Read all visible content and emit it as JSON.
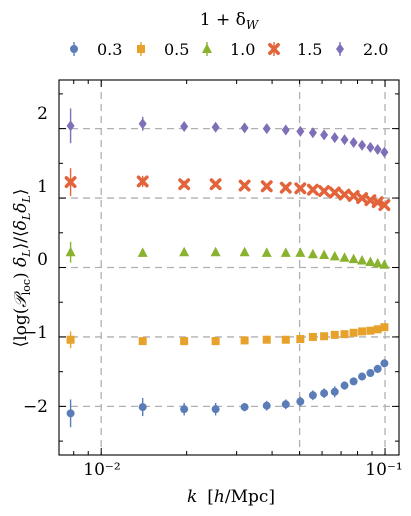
{
  "chart_data": {
    "type": "scatter",
    "x_scale": "log",
    "xlim": [
      0.0071,
      0.112
    ],
    "ylim": [
      -2.7,
      2.7
    ],
    "xlabel": "k  [h/Mpc]",
    "ylabel": "⟨log(𝒫_loc) δ_L⟩/⟨δ_L δ_L⟩",
    "x_tick_labels": [
      "10⁻²",
      "10⁻¹"
    ],
    "y_ticks": [
      -2,
      -1,
      0,
      1,
      2
    ],
    "y_tick_labels": [
      "−2",
      "−1",
      "0",
      "1",
      "2"
    ],
    "grid": "dashed lines at x = 0.01, 0.05, 0.1 and y = −2, −1, 0, 1, 2",
    "legend": {
      "placement": "top, horizontal",
      "title": "1 + δ_W",
      "labels": [
        "0.3",
        "0.5",
        "1.0",
        "1.5",
        "2.0"
      ]
    },
    "x": [
      0.0078,
      0.014,
      0.0196,
      0.0253,
      0.032,
      0.0383,
      0.0447,
      0.0503,
      0.0557,
      0.061,
      0.0665,
      0.072,
      0.0775,
      0.083,
      0.0888,
      0.0942,
      0.0995
    ],
    "series": [
      {
        "label": "0.3",
        "color": "#5a7db8",
        "marker": "circle",
        "values": [
          -2.1,
          -2.01,
          -2.04,
          -2.04,
          -2.01,
          -1.99,
          -1.97,
          -1.93,
          -1.84,
          -1.81,
          -1.79,
          -1.7,
          -1.64,
          -1.57,
          -1.52,
          -1.46,
          -1.38
        ],
        "errors": [
          0.2,
          0.13,
          0.09,
          0.09,
          0.06,
          0.07,
          0.07,
          0.07,
          0.07,
          0.07,
          0.08,
          0.06,
          0.05,
          0.05,
          0.05,
          0.06,
          0.06
        ]
      },
      {
        "label": "0.5",
        "color": "#e6a22b",
        "marker": "square",
        "values": [
          -1.04,
          -1.06,
          -1.06,
          -1.06,
          -1.05,
          -1.04,
          -1.04,
          -1.03,
          -1.0,
          -0.99,
          -0.97,
          -0.96,
          -0.94,
          -0.92,
          -0.91,
          -0.89,
          -0.86
        ],
        "errors": [
          0.12,
          0.05,
          0.04,
          0.03,
          0.03,
          0.03,
          0.03,
          0.03,
          0.03,
          0.03,
          0.03,
          0.03,
          0.03,
          0.03,
          0.03,
          0.03,
          0.03
        ]
      },
      {
        "label": "1.0",
        "color": "#89b22e",
        "marker": "triangle",
        "values": [
          0.22,
          0.21,
          0.22,
          0.22,
          0.22,
          0.21,
          0.21,
          0.21,
          0.19,
          0.18,
          0.16,
          0.14,
          0.12,
          0.1,
          0.08,
          0.06,
          0.04
        ],
        "errors": [
          0.15,
          0.05,
          0.03,
          0.03,
          0.02,
          0.02,
          0.02,
          0.02,
          0.02,
          0.02,
          0.02,
          0.02,
          0.02,
          0.02,
          0.02,
          0.02,
          0.02
        ]
      },
      {
        "label": "1.5",
        "color": "#e3643a",
        "marker": "x",
        "values": [
          1.23,
          1.24,
          1.2,
          1.2,
          1.18,
          1.17,
          1.15,
          1.14,
          1.12,
          1.1,
          1.08,
          1.05,
          1.03,
          1.0,
          0.97,
          0.94,
          0.9
        ],
        "errors": [
          0.2,
          0.08,
          0.05,
          0.04,
          0.03,
          0.03,
          0.03,
          0.03,
          0.03,
          0.03,
          0.03,
          0.03,
          0.03,
          0.03,
          0.03,
          0.03,
          0.03
        ]
      },
      {
        "label": "2.0",
        "color": "#7f6eb8",
        "marker": "diamond",
        "values": [
          2.04,
          2.07,
          2.03,
          2.02,
          2.01,
          2.0,
          1.98,
          1.96,
          1.94,
          1.91,
          1.87,
          1.84,
          1.8,
          1.76,
          1.73,
          1.7,
          1.66
        ],
        "errors": [
          0.25,
          0.1,
          0.06,
          0.04,
          0.04,
          0.04,
          0.03,
          0.03,
          0.03,
          0.03,
          0.03,
          0.03,
          0.03,
          0.03,
          0.03,
          0.03,
          0.03
        ]
      }
    ]
  }
}
